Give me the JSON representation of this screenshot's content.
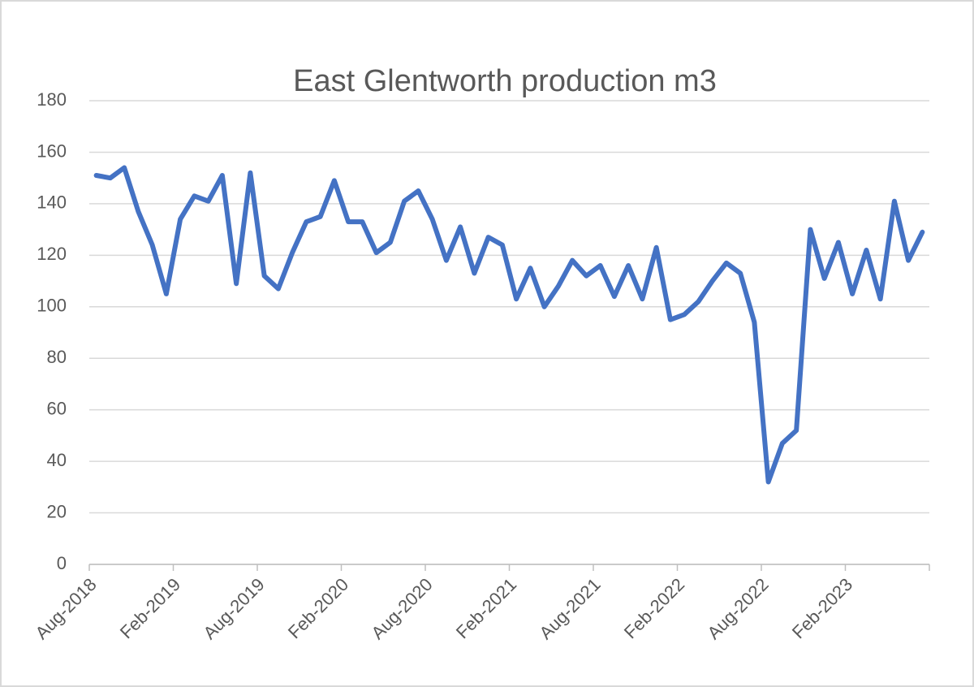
{
  "chart_data": {
    "type": "line",
    "title": "East Glentworth production m3",
    "categories": [
      "Aug-2018",
      null,
      null,
      null,
      null,
      null,
      "Feb-2019",
      null,
      null,
      null,
      null,
      null,
      "Aug-2019",
      null,
      null,
      null,
      null,
      null,
      "Feb-2020",
      null,
      null,
      null,
      null,
      null,
      "Aug-2020",
      null,
      null,
      null,
      null,
      null,
      "Feb-2021",
      null,
      null,
      null,
      null,
      null,
      "Aug-2021",
      null,
      null,
      null,
      null,
      null,
      "Feb-2022",
      null,
      null,
      null,
      null,
      null,
      "Aug-2022",
      null,
      null,
      null,
      null,
      null,
      "Feb-2023",
      null,
      null,
      null,
      null,
      null
    ],
    "series": [
      {
        "color": "#4472c4",
        "values": [
          151,
          150,
          154,
          137,
          124,
          105,
          134,
          143,
          141,
          151,
          109,
          152,
          112,
          107,
          121,
          133,
          135,
          149,
          133,
          133,
          121,
          125,
          141,
          145,
          134,
          118,
          131,
          113,
          127,
          124,
          103,
          115,
          100,
          108,
          118,
          112,
          116,
          104,
          116,
          103,
          123,
          95,
          97,
          102,
          110,
          117,
          113,
          94,
          32,
          47,
          52,
          130,
          111,
          125,
          105,
          122,
          103,
          141,
          118,
          129
        ]
      }
    ],
    "ylim": [
      0,
      180
    ],
    "yticks": [
      0,
      20,
      40,
      60,
      80,
      100,
      120,
      140,
      160,
      180
    ],
    "grid": true
  }
}
